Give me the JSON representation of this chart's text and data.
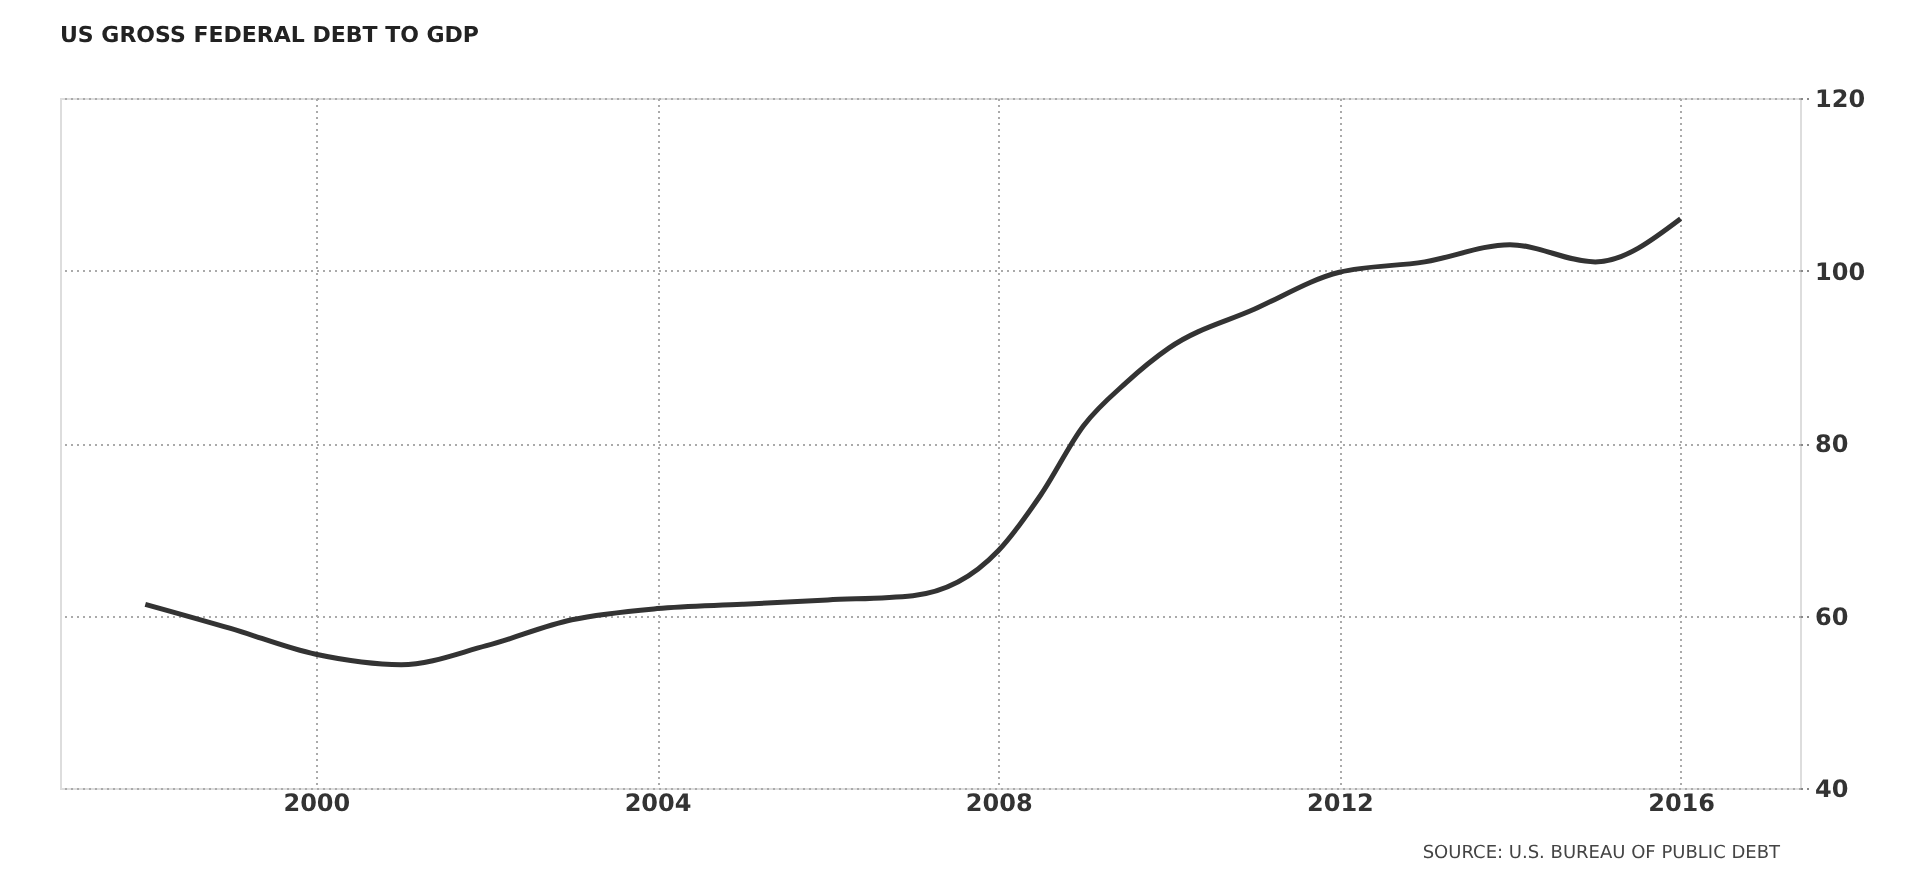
{
  "chart_data": {
    "type": "line",
    "title": "US GROSS FEDERAL DEBT TO GDP",
    "annotations": [
      "SOURCE: U.S. BUREAU OF PUBLIC DEBT"
    ],
    "x": [
      1998,
      1999,
      2000,
      2001,
      2002,
      2003,
      2004,
      2005,
      2006,
      2007,
      2008,
      2008.5,
      2009,
      2009.5,
      2010,
      2011,
      2012,
      2013,
      2014,
      2015,
      2016
    ],
    "series": [
      {
        "color": "#333333",
        "values": [
          61.3,
          58.5,
          55.5,
          54.3,
          56.5,
          59.5,
          60.8,
          61.3,
          61.8,
          62.3,
          67.5,
          74,
          82,
          87,
          91,
          95.5,
          99.8,
          101,
          103,
          101,
          106
        ]
      }
    ],
    "xlim": [
      1997,
      2017.4
    ],
    "xticks": [
      2000,
      2004,
      2008,
      2012,
      2016
    ],
    "ylim": [
      40,
      120
    ],
    "yticks": [
      40,
      60,
      80,
      100,
      120
    ],
    "grid": true,
    "marker": "none",
    "line_style": "solid"
  }
}
